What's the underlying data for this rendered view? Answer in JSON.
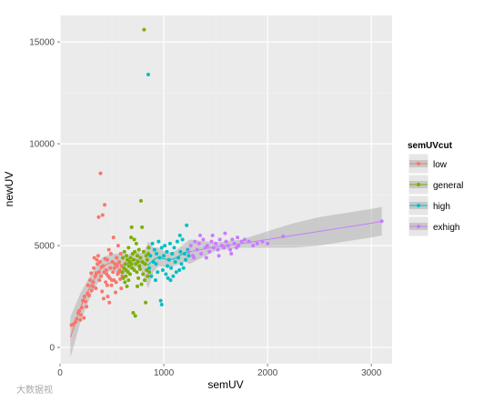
{
  "watermark": "大数据视",
  "chart_data": {
    "type": "scatter",
    "xlabel": "semUV",
    "ylabel": "newUV",
    "xlim": [
      0,
      3200
    ],
    "ylim": [
      -800,
      16300
    ],
    "x_ticks": [
      0,
      1000,
      2000,
      3000
    ],
    "x_tick_labels": [
      "0",
      "1000",
      "2000",
      "3000"
    ],
    "y_ticks": [
      0,
      5000,
      10000,
      15000
    ],
    "y_tick_labels": [
      "0",
      "5000",
      "10000",
      "15000"
    ],
    "grid": true,
    "background": "#ebebeb",
    "legend": {
      "title": "semUVcut",
      "position": "right"
    },
    "smooth": {
      "method": "loess",
      "confidence_band": true,
      "band_color": "#999999"
    },
    "series": [
      {
        "name": "low",
        "color": "#F8766D",
        "points": [
          [
            110,
            1100
          ],
          [
            130,
            1150
          ],
          [
            150,
            1250
          ],
          [
            160,
            1400
          ],
          [
            175,
            1700
          ],
          [
            185,
            1800
          ],
          [
            200,
            1600
          ],
          [
            210,
            1950
          ],
          [
            220,
            2300
          ],
          [
            230,
            1450
          ],
          [
            245,
            2250
          ],
          [
            255,
            2000
          ],
          [
            265,
            2650
          ],
          [
            280,
            2550
          ],
          [
            290,
            3300
          ],
          [
            300,
            3650
          ],
          [
            305,
            2800
          ],
          [
            315,
            3000
          ],
          [
            325,
            3900
          ],
          [
            330,
            4400
          ],
          [
            340,
            3500
          ],
          [
            345,
            2900
          ],
          [
            350,
            3650
          ],
          [
            355,
            4300
          ],
          [
            360,
            4100
          ],
          [
            368,
            4500
          ],
          [
            372,
            6400
          ],
          [
            376,
            3700
          ],
          [
            380,
            3300
          ],
          [
            385,
            4200
          ],
          [
            390,
            8550
          ],
          [
            395,
            3500
          ],
          [
            400,
            3950
          ],
          [
            405,
            2750
          ],
          [
            410,
            6500
          ],
          [
            415,
            4000
          ],
          [
            420,
            2400
          ],
          [
            425,
            3700
          ],
          [
            430,
            7000
          ],
          [
            435,
            4350
          ],
          [
            440,
            3200
          ],
          [
            445,
            3800
          ],
          [
            450,
            3600
          ],
          [
            455,
            4300
          ],
          [
            460,
            2500
          ],
          [
            465,
            3500
          ],
          [
            470,
            4800
          ],
          [
            475,
            2200
          ],
          [
            480,
            3400
          ],
          [
            485,
            3900
          ],
          [
            490,
            4600
          ],
          [
            495,
            3050
          ],
          [
            500,
            3300
          ],
          [
            505,
            4200
          ],
          [
            510,
            3700
          ],
          [
            515,
            5400
          ],
          [
            520,
            3300
          ],
          [
            525,
            3900
          ],
          [
            530,
            4100
          ],
          [
            535,
            2700
          ],
          [
            540,
            3200
          ],
          [
            545,
            4400
          ],
          [
            550,
            4000
          ],
          [
            555,
            3600
          ],
          [
            560,
            5000
          ],
          [
            565,
            3700
          ],
          [
            570,
            4200
          ],
          [
            575,
            3800
          ],
          [
            580,
            3350
          ],
          [
            585,
            4600
          ],
          [
            590,
            2900
          ],
          [
            595,
            4000
          ],
          [
            600,
            3500
          ],
          [
            270,
            3050
          ],
          [
            235,
            2500
          ],
          [
            195,
            1350
          ],
          [
            320,
            3200
          ],
          [
            455,
            3050
          ]
        ]
      },
      {
        "name": "general",
        "color": "#7CAE00",
        "points": [
          [
            600,
            3700
          ],
          [
            605,
            4400
          ],
          [
            610,
            3400
          ],
          [
            615,
            3900
          ],
          [
            620,
            4700
          ],
          [
            625,
            3200
          ],
          [
            630,
            4100
          ],
          [
            635,
            3800
          ],
          [
            640,
            4500
          ],
          [
            645,
            3000
          ],
          [
            650,
            4300
          ],
          [
            655,
            3700
          ],
          [
            660,
            4900
          ],
          [
            665,
            4000
          ],
          [
            670,
            4200
          ],
          [
            675,
            3600
          ],
          [
            680,
            4400
          ],
          [
            685,
            5400
          ],
          [
            690,
            4100
          ],
          [
            695,
            3900
          ],
          [
            700,
            4600
          ],
          [
            705,
            1700
          ],
          [
            710,
            4300
          ],
          [
            715,
            3800
          ],
          [
            720,
            4700
          ],
          [
            725,
            1550
          ],
          [
            730,
            4100
          ],
          [
            735,
            5100
          ],
          [
            740,
            3700
          ],
          [
            745,
            4500
          ],
          [
            750,
            4200
          ],
          [
            755,
            3400
          ],
          [
            760,
            4800
          ],
          [
            765,
            4000
          ],
          [
            770,
            3850
          ],
          [
            775,
            4400
          ],
          [
            780,
            7200
          ],
          [
            785,
            3100
          ],
          [
            790,
            5900
          ],
          [
            795,
            4200
          ],
          [
            800,
            3600
          ],
          [
            805,
            4700
          ],
          [
            810,
            15600
          ],
          [
            815,
            3300
          ],
          [
            820,
            4100
          ],
          [
            825,
            2200
          ],
          [
            830,
            4500
          ],
          [
            835,
            3800
          ],
          [
            840,
            4300
          ],
          [
            845,
            3500
          ],
          [
            850,
            4600
          ],
          [
            855,
            4900
          ],
          [
            860,
            3700
          ],
          [
            690,
            5900
          ],
          [
            660,
            3300
          ],
          [
            715,
            5300
          ],
          [
            745,
            3000
          ],
          [
            635,
            3500
          ]
        ]
      },
      {
        "name": "high",
        "color": "#00BFC4",
        "points": [
          [
            850,
            13400
          ],
          [
            860,
            3900
          ],
          [
            870,
            4500
          ],
          [
            880,
            3500
          ],
          [
            890,
            5100
          ],
          [
            900,
            4200
          ],
          [
            910,
            4800
          ],
          [
            920,
            3300
          ],
          [
            930,
            4600
          ],
          [
            940,
            3700
          ],
          [
            950,
            5200
          ],
          [
            960,
            4400
          ],
          [
            970,
            2300
          ],
          [
            980,
            4900
          ],
          [
            990,
            3800
          ],
          [
            1000,
            4500
          ],
          [
            1010,
            5000
          ],
          [
            1020,
            3600
          ],
          [
            1030,
            4700
          ],
          [
            1040,
            3400
          ],
          [
            1050,
            4300
          ],
          [
            1060,
            5100
          ],
          [
            1070,
            3900
          ],
          [
            1080,
            4600
          ],
          [
            1090,
            3500
          ],
          [
            1100,
            4900
          ],
          [
            1110,
            4200
          ],
          [
            1120,
            3700
          ],
          [
            1130,
            5200
          ],
          [
            1140,
            4400
          ],
          [
            1150,
            3800
          ],
          [
            1160,
            4700
          ],
          [
            1170,
            4100
          ],
          [
            1180,
            5300
          ],
          [
            1190,
            3900
          ],
          [
            1200,
            4600
          ],
          [
            1210,
            4300
          ],
          [
            1220,
            6000
          ],
          [
            1230,
            4800
          ],
          [
            1240,
            4500
          ],
          [
            980,
            2100
          ],
          [
            1065,
            3300
          ],
          [
            925,
            4100
          ],
          [
            1155,
            5500
          ],
          [
            1035,
            4000
          ]
        ]
      },
      {
        "name": "exhigh",
        "color": "#C77CFF",
        "points": [
          [
            1240,
            4700
          ],
          [
            1260,
            5000
          ],
          [
            1280,
            4500
          ],
          [
            1300,
            5200
          ],
          [
            1320,
            4800
          ],
          [
            1340,
            5100
          ],
          [
            1360,
            4600
          ],
          [
            1380,
            5300
          ],
          [
            1400,
            4900
          ],
          [
            1420,
            5000
          ],
          [
            1440,
            4700
          ],
          [
            1460,
            5200
          ],
          [
            1480,
            4900
          ],
          [
            1500,
            5100
          ],
          [
            1520,
            4800
          ],
          [
            1540,
            5300
          ],
          [
            1560,
            5000
          ],
          [
            1580,
            4900
          ],
          [
            1600,
            5200
          ],
          [
            1620,
            5000
          ],
          [
            1640,
            4800
          ],
          [
            1660,
            5300
          ],
          [
            1680,
            5100
          ],
          [
            1700,
            4900
          ],
          [
            1720,
            5000
          ],
          [
            1750,
            5200
          ],
          [
            1780,
            5300
          ],
          [
            1820,
            5200
          ],
          [
            1860,
            5000
          ],
          [
            1900,
            5100
          ],
          [
            1950,
            5200
          ],
          [
            2000,
            5100
          ],
          [
            2150,
            5450
          ],
          [
            3100,
            6200
          ],
          [
            1290,
            4400
          ],
          [
            1350,
            5500
          ],
          [
            1410,
            4400
          ],
          [
            1470,
            5500
          ],
          [
            1530,
            4500
          ],
          [
            1590,
            5600
          ],
          [
            1650,
            4600
          ],
          [
            1710,
            5400
          ]
        ]
      }
    ],
    "trend": [
      {
        "series": "low",
        "x": [
          100,
          200,
          300,
          400,
          500,
          600
        ],
        "y": [
          500,
          2000,
          3100,
          3950,
          4200,
          4050
        ],
        "upper": [
          1500,
          2700,
          3600,
          4400,
          4600,
          4600
        ],
        "lower": [
          -500,
          1300,
          2600,
          3500,
          3800,
          3500
        ]
      },
      {
        "series": "general",
        "x": [
          600,
          650,
          700,
          750,
          800,
          850
        ],
        "y": [
          4050,
          4100,
          4300,
          4300,
          4100,
          4050
        ],
        "upper": [
          4600,
          4500,
          4700,
          4700,
          4600,
          5200
        ],
        "lower": [
          3500,
          3700,
          3900,
          3900,
          3600,
          2900
        ]
      },
      {
        "series": "high",
        "x": [
          850,
          900,
          950,
          1000,
          1050,
          1100,
          1150,
          1200,
          1250
        ],
        "y": [
          4050,
          4300,
          4450,
          4350,
          4300,
          4350,
          4500,
          4650,
          4700
        ],
        "upper": [
          5200,
          4900,
          4900,
          4750,
          4650,
          4700,
          4900,
          5100,
          5300
        ],
        "lower": [
          2900,
          3700,
          4000,
          3950,
          3950,
          4000,
          4100,
          4200,
          4100
        ]
      },
      {
        "series": "exhigh",
        "x": [
          1250,
          1500,
          1750,
          2000,
          2250,
          2500,
          2750,
          3000,
          3100
        ],
        "y": [
          4700,
          4950,
          5100,
          5300,
          5500,
          5700,
          5900,
          6100,
          6200
        ],
        "upper": [
          5300,
          5150,
          5300,
          5700,
          6100,
          6400,
          6600,
          6800,
          6900
        ],
        "lower": [
          4100,
          4750,
          4900,
          4900,
          4900,
          5000,
          5200,
          5400,
          5500
        ]
      }
    ]
  }
}
